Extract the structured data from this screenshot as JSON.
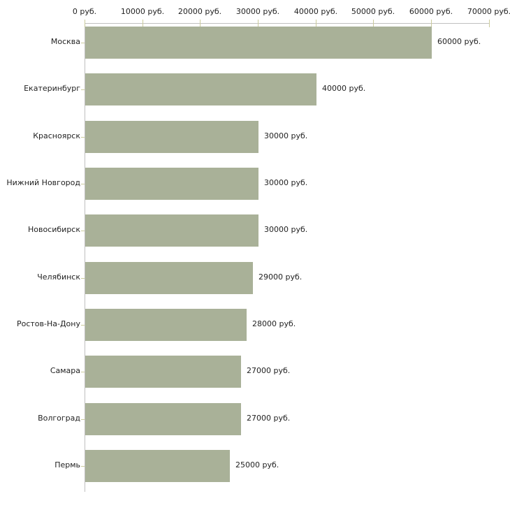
{
  "chart_data": {
    "type": "bar",
    "orientation": "horizontal",
    "title": "",
    "xlabel": "",
    "ylabel": "",
    "categories": [
      "Москва",
      "Екатеринбург",
      "Красноярск",
      "Нижний Новгород",
      "Новосибирск",
      "Челябинск",
      "Ростов-На-Дону",
      "Самара",
      "Волгоград",
      "Пермь"
    ],
    "values": [
      60000,
      40000,
      30000,
      30000,
      30000,
      29000,
      28000,
      27000,
      27000,
      25000
    ],
    "value_labels": [
      "60000 руб.",
      "40000 руб.",
      "30000 руб.",
      "30000 руб.",
      "30000 руб.",
      "29000 руб.",
      "28000 руб.",
      "27000 руб.",
      "27000 руб.",
      "25000 руб."
    ],
    "x_ticks": [
      0,
      10000,
      20000,
      30000,
      40000,
      50000,
      60000,
      70000
    ],
    "x_tick_labels": [
      "0 руб.",
      "10000 руб.",
      "20000 руб.",
      "30000 руб.",
      "40000 руб.",
      "50000 руб.",
      "60000 руб.",
      "70000 руб."
    ],
    "xlim": [
      0,
      70000
    ],
    "axis_position": "top",
    "grid": false,
    "legend": null,
    "colors": {
      "bar": "#a9b198",
      "axis_line": "#c0c0c0",
      "tick": "#cbcb9c",
      "text": "#222222",
      "background": "#ffffff"
    }
  }
}
